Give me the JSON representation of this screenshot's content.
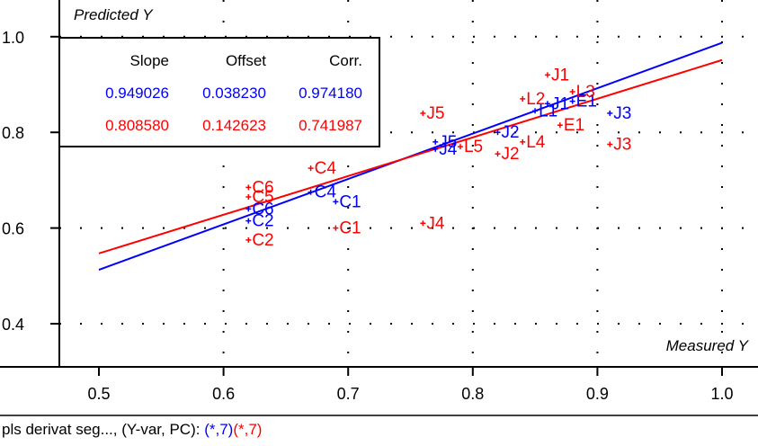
{
  "chart_data": {
    "type": "scatter",
    "title": "",
    "ylabel": "Predicted Y",
    "xlabel": "Measured Y",
    "xlim": [
      0.47,
      1.03
    ],
    "ylim": [
      0.31,
      1.06
    ],
    "xticks": [
      "0.5",
      "0.6",
      "0.7",
      "0.8",
      "0.9",
      "1.0"
    ],
    "yticks": [
      "0.4",
      "0.6",
      "0.8",
      "1.0"
    ],
    "grid": true,
    "stats_table": {
      "headers": [
        "Slope",
        "Offset",
        "Corr."
      ],
      "rows": [
        {
          "color": "#0000ff",
          "values": [
            "0.949026",
            "0.038230",
            "0.974180"
          ]
        },
        {
          "color": "#ff0000",
          "values": [
            "0.808580",
            "0.142623",
            "0.741987"
          ]
        }
      ]
    },
    "series": [
      {
        "color": "#0000ff",
        "regression": {
          "slope": 0.949026,
          "offset": 0.03823
        },
        "points": [
          {
            "label": "C1",
            "x": 0.69,
            "y": 0.655
          },
          {
            "label": "C4",
            "x": 0.67,
            "y": 0.675
          },
          {
            "label": "C2",
            "x": 0.62,
            "y": 0.615
          },
          {
            "label": "C6",
            "x": 0.62,
            "y": 0.64
          },
          {
            "label": "J5",
            "x": 0.77,
            "y": 0.78
          },
          {
            "label": "J4",
            "x": 0.77,
            "y": 0.765
          },
          {
            "label": "L1",
            "x": 0.85,
            "y": 0.845
          },
          {
            "label": "J1",
            "x": 0.86,
            "y": 0.86
          },
          {
            "label": "E1",
            "x": 0.88,
            "y": 0.865
          },
          {
            "label": "J3",
            "x": 0.91,
            "y": 0.84
          },
          {
            "label": "J2",
            "x": 0.82,
            "y": 0.8
          }
        ]
      },
      {
        "color": "#ff0000",
        "regression": {
          "slope": 0.80858,
          "offset": 0.142623
        },
        "points": [
          {
            "label": "C4",
            "x": 0.67,
            "y": 0.725
          },
          {
            "label": "C6",
            "x": 0.62,
            "y": 0.685
          },
          {
            "label": "C5",
            "x": 0.62,
            "y": 0.665
          },
          {
            "label": "C1",
            "x": 0.69,
            "y": 0.6
          },
          {
            "label": "C2",
            "x": 0.62,
            "y": 0.575
          },
          {
            "label": "J5",
            "x": 0.76,
            "y": 0.84
          },
          {
            "label": "J4",
            "x": 0.76,
            "y": 0.61
          },
          {
            "label": "L5",
            "x": 0.79,
            "y": 0.77
          },
          {
            "label": "J2",
            "x": 0.82,
            "y": 0.755
          },
          {
            "label": "L4",
            "x": 0.84,
            "y": 0.78
          },
          {
            "label": "J1",
            "x": 0.86,
            "y": 0.92
          },
          {
            "label": "L2",
            "x": 0.84,
            "y": 0.87
          },
          {
            "label": "L3",
            "x": 0.88,
            "y": 0.885
          },
          {
            "label": "E1",
            "x": 0.87,
            "y": 0.815
          },
          {
            "label": "J3",
            "x": 0.91,
            "y": 0.775
          }
        ]
      }
    ]
  },
  "caption": {
    "prefix": "pls derivat seg..., (Y-var, PC): ",
    "blue_part": "(*,7)",
    "red_part": "(*,7)"
  }
}
